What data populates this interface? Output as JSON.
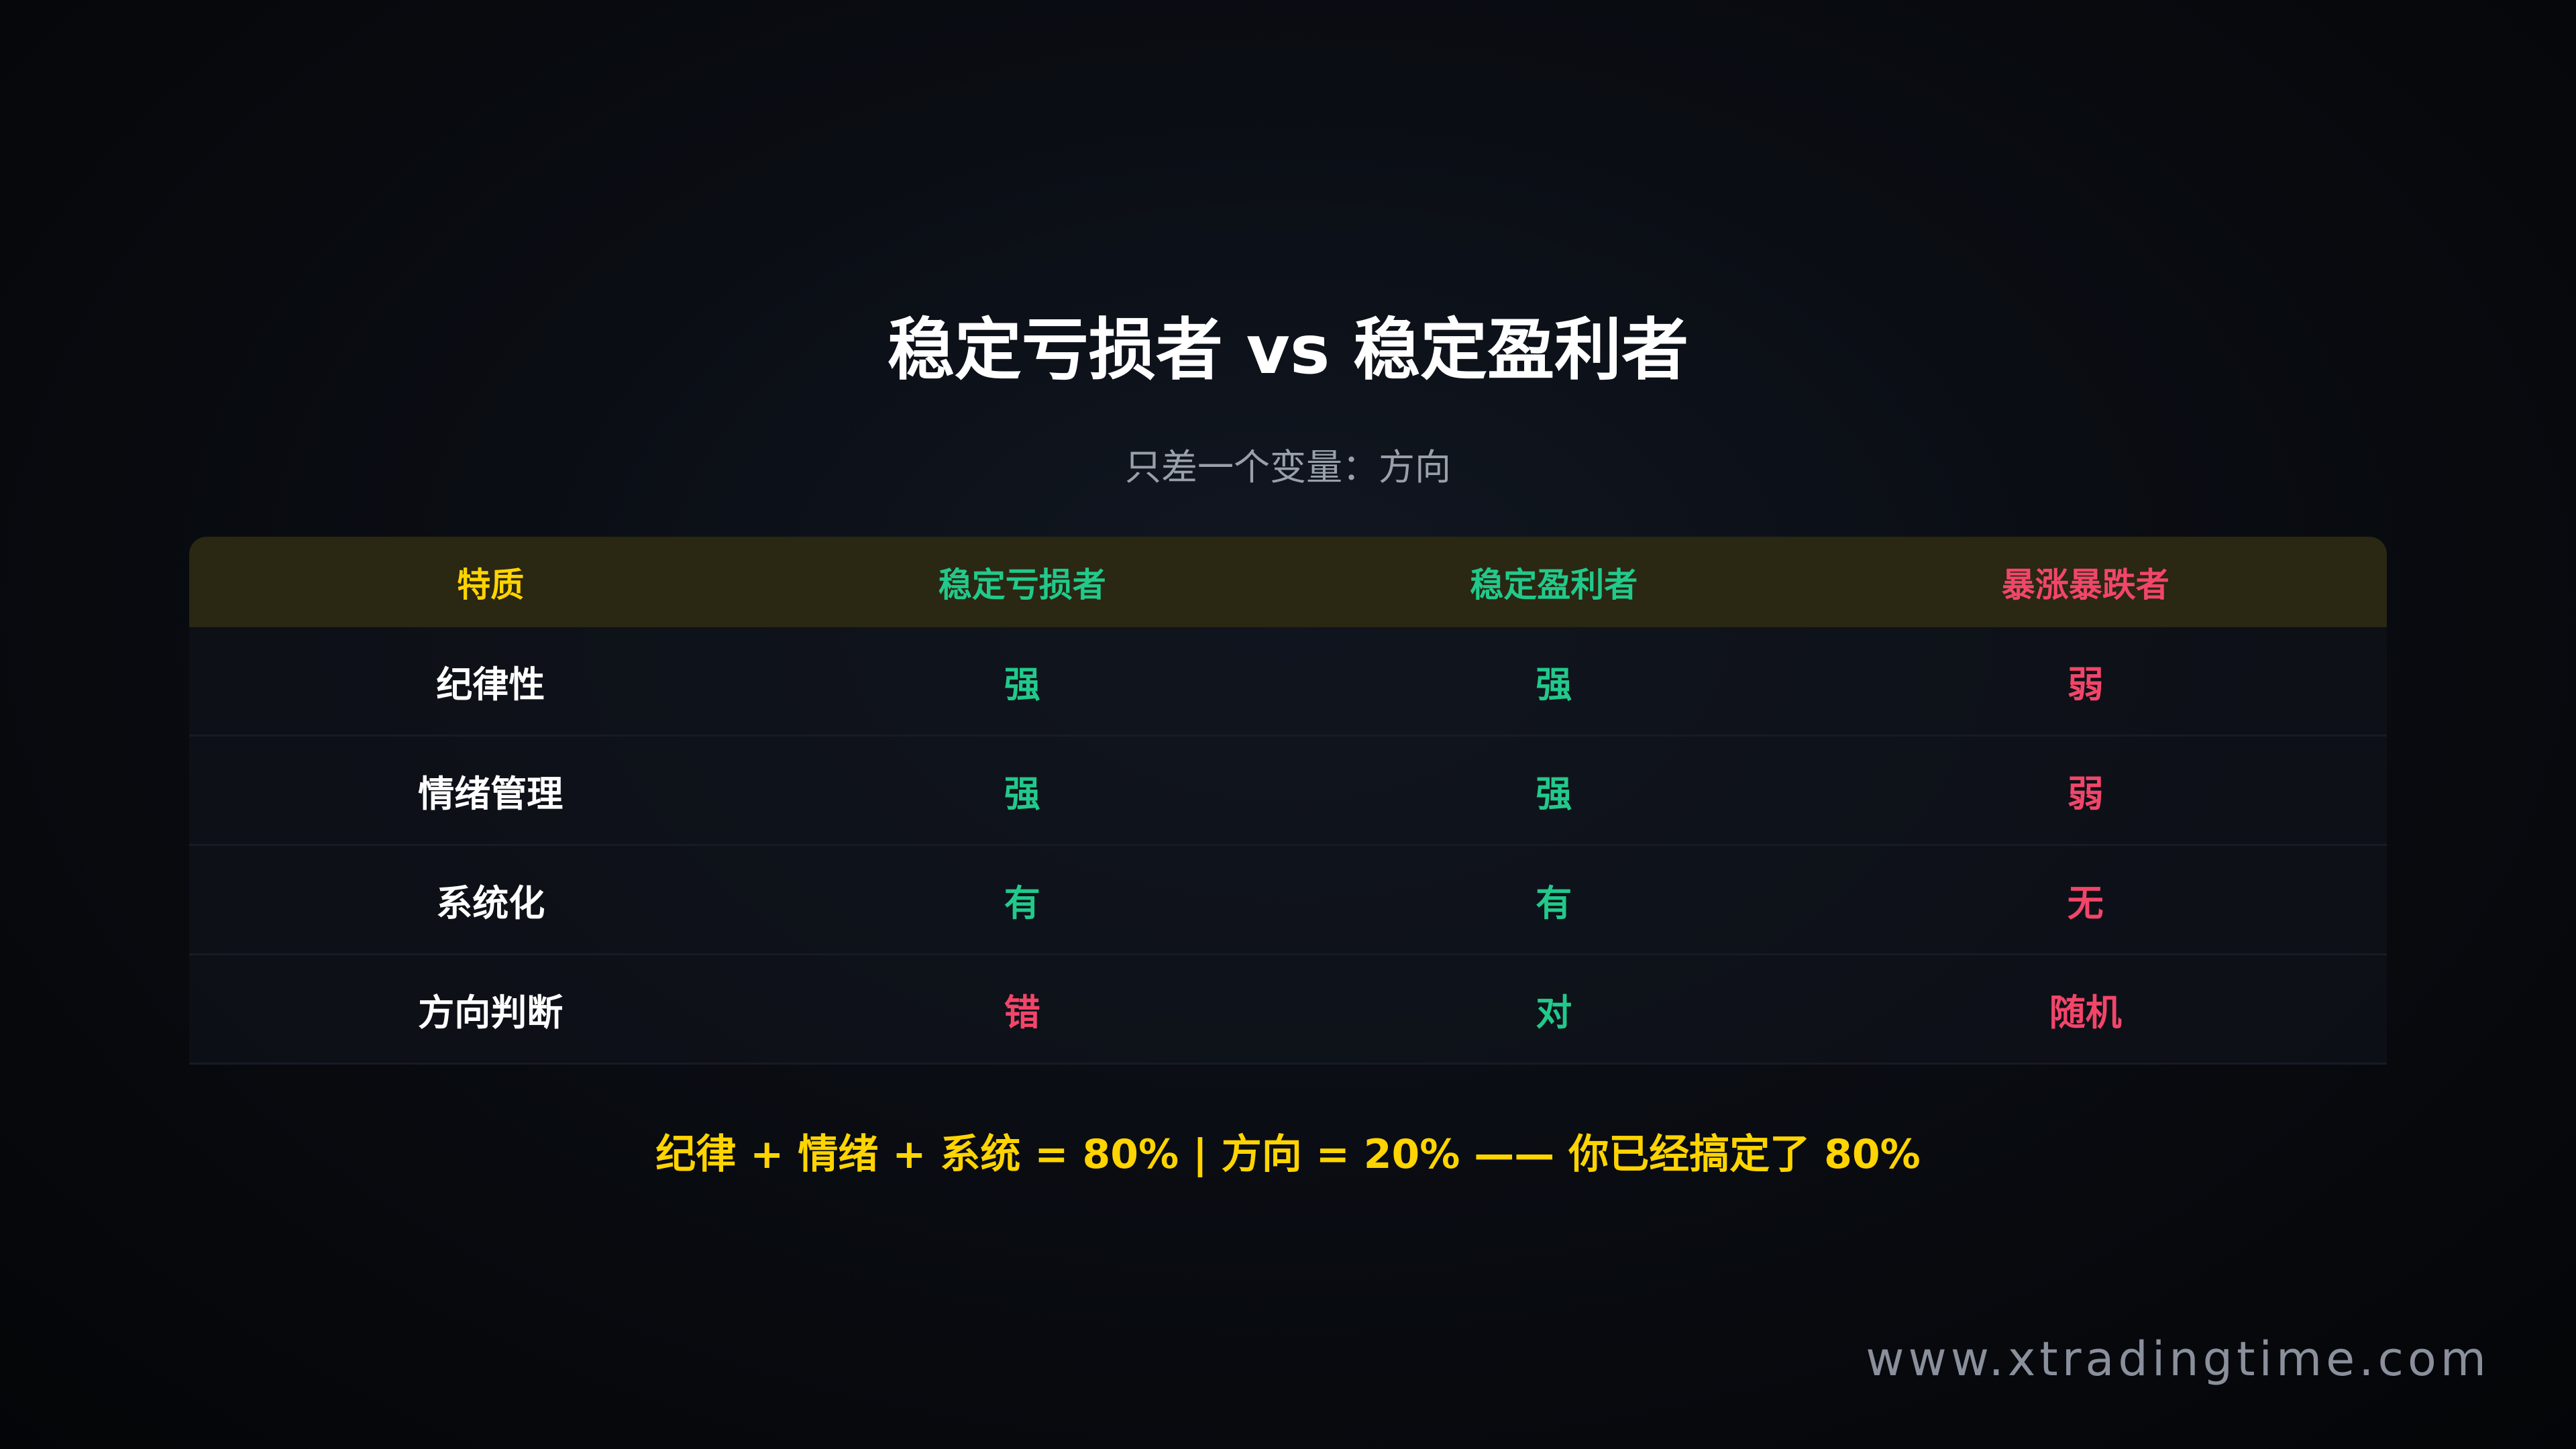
{
  "title": "稳定亏损者 vs 稳定盈利者",
  "subtitle": "只差一个变量：方向",
  "colors": {
    "yellow": "#FFD400",
    "green": "#22C98B",
    "red": "#F2456A",
    "white": "#FFFFFF"
  },
  "table": {
    "headers": [
      {
        "label": "特质",
        "color": "#FFD400"
      },
      {
        "label": "稳定亏损者",
        "color": "#22C98B"
      },
      {
        "label": "稳定盈利者",
        "color": "#22C98B"
      },
      {
        "label": "暴涨暴跌者",
        "color": "#F2456A"
      }
    ],
    "rows": [
      {
        "cells": [
          {
            "text": "纪律性",
            "color": "#FFFFFF"
          },
          {
            "text": "强",
            "color": "#22C98B"
          },
          {
            "text": "强",
            "color": "#22C98B"
          },
          {
            "text": "弱",
            "color": "#F2456A"
          }
        ]
      },
      {
        "cells": [
          {
            "text": "情绪管理",
            "color": "#FFFFFF"
          },
          {
            "text": "强",
            "color": "#22C98B"
          },
          {
            "text": "强",
            "color": "#22C98B"
          },
          {
            "text": "弱",
            "color": "#F2456A"
          }
        ]
      },
      {
        "cells": [
          {
            "text": "系统化",
            "color": "#FFFFFF"
          },
          {
            "text": "有",
            "color": "#22C98B"
          },
          {
            "text": "有",
            "color": "#22C98B"
          },
          {
            "text": "无",
            "color": "#F2456A"
          }
        ]
      },
      {
        "cells": [
          {
            "text": "方向判断",
            "color": "#FFFFFF"
          },
          {
            "text": "错",
            "color": "#F2456A"
          },
          {
            "text": "对",
            "color": "#22C98B"
          },
          {
            "text": "随机",
            "color": "#F2456A"
          }
        ]
      }
    ]
  },
  "footer": {
    "text": "纪律 + 情绪 + 系统 = 80% | 方向 = 20% —— 你已经搞定了 80%",
    "color": "#FFD400"
  },
  "watermark": "www.xtradingtime.com"
}
